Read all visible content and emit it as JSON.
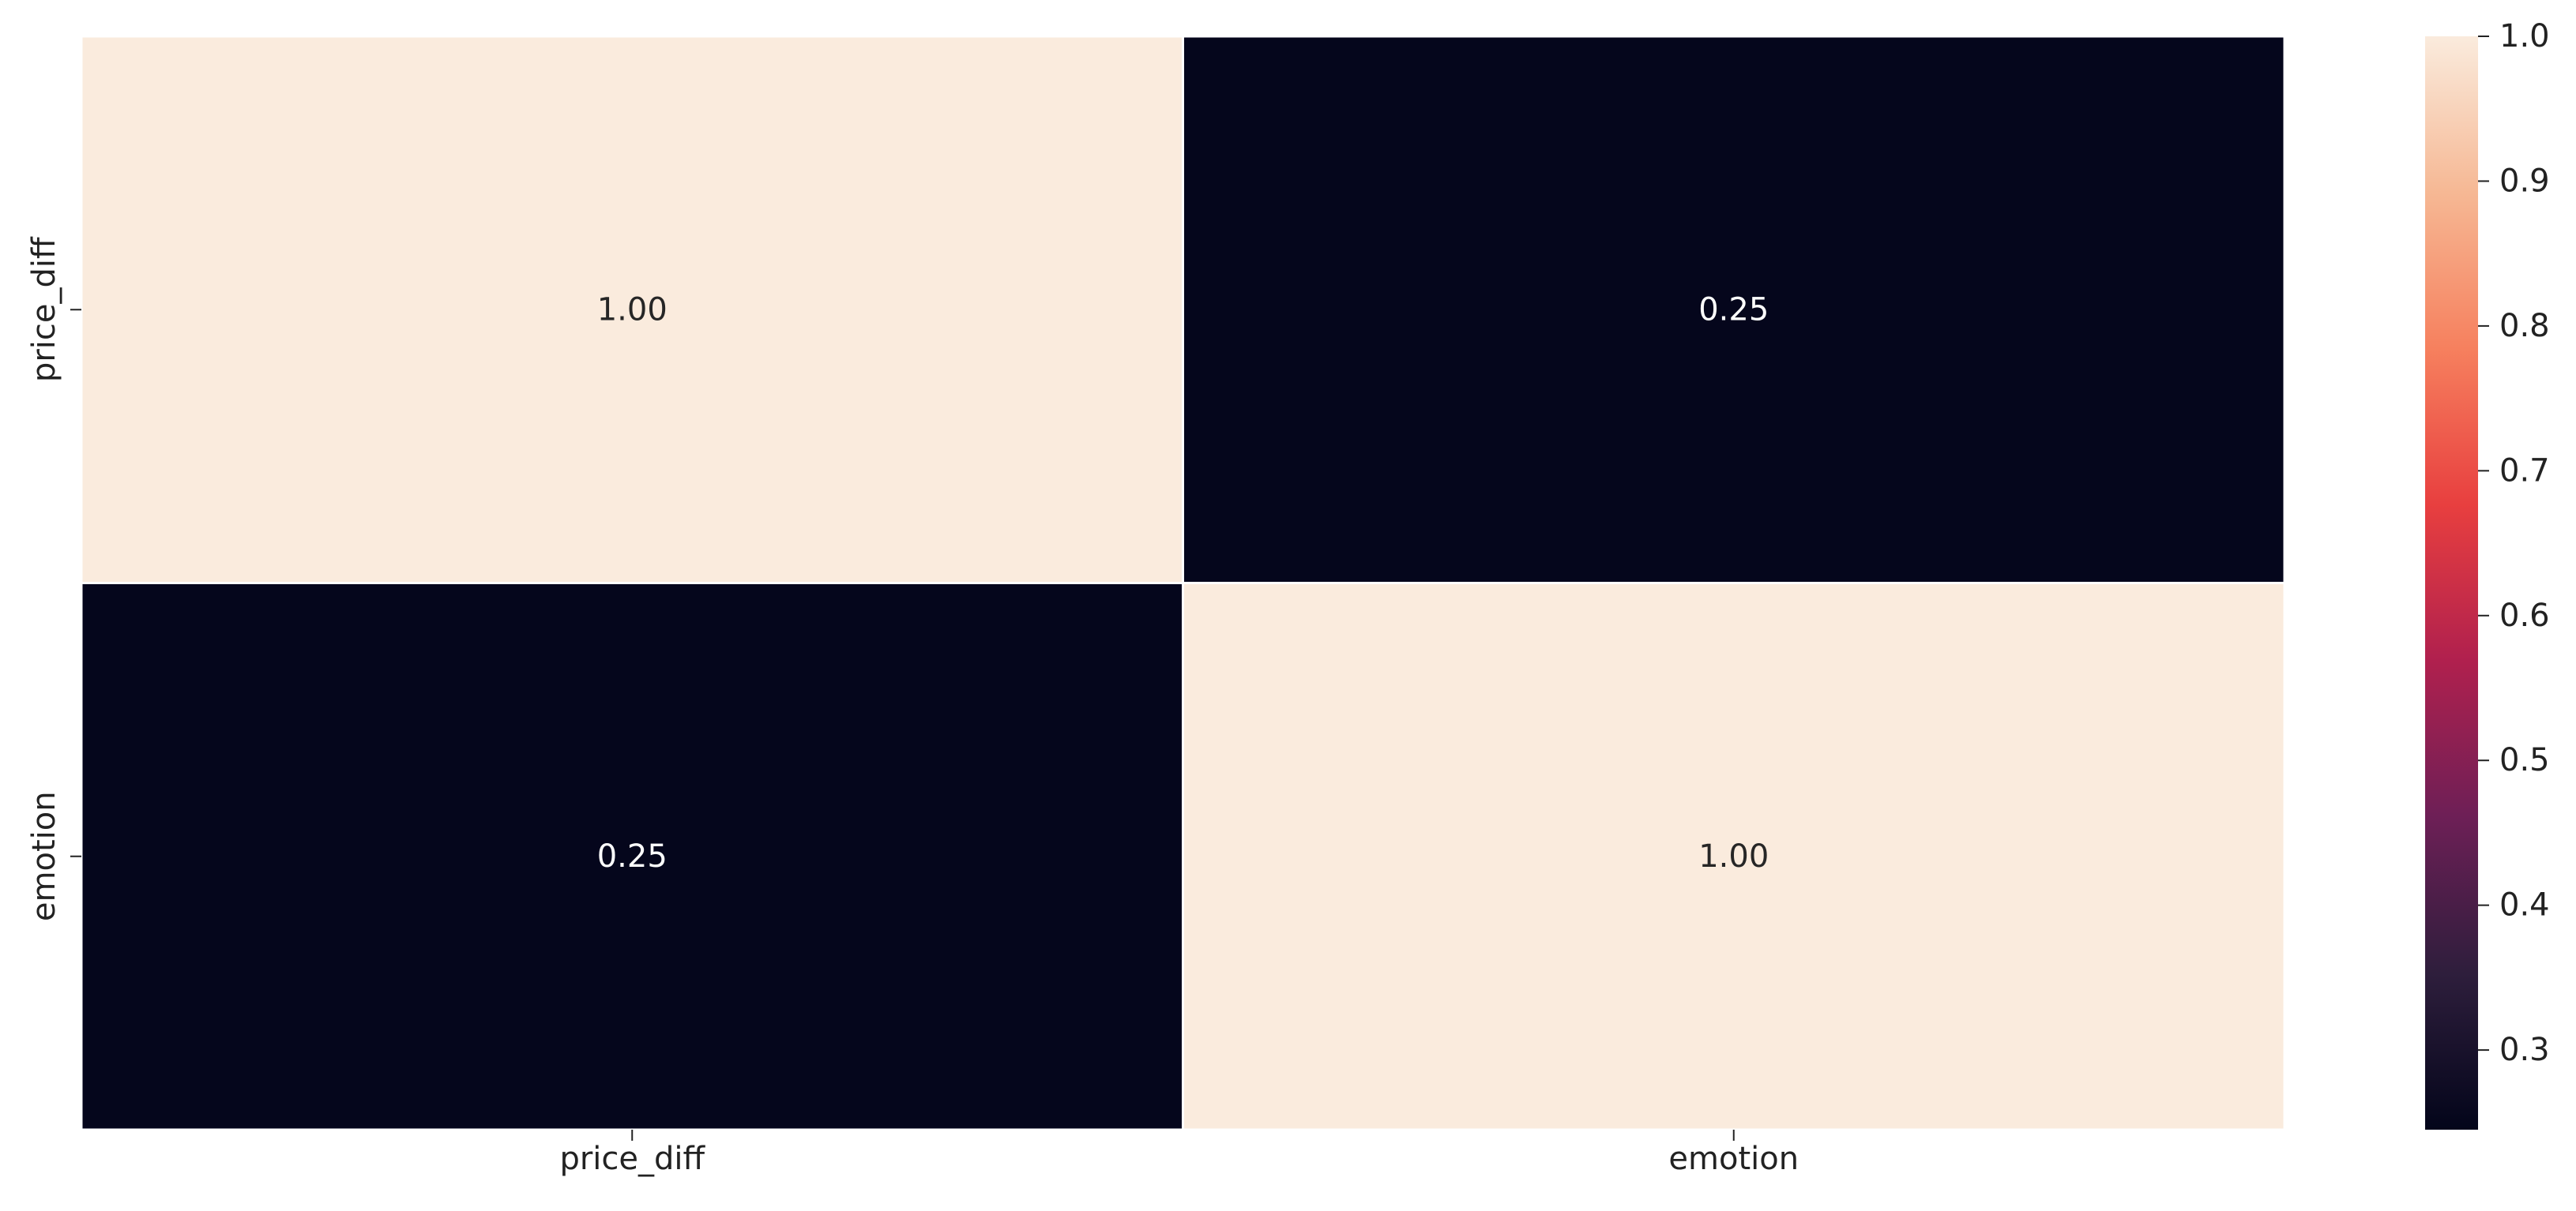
{
  "chart_data": {
    "type": "heatmap",
    "title": "",
    "xlabel": "",
    "ylabel": "",
    "x_categories": [
      "price_diff",
      "emotion"
    ],
    "y_categories": [
      "price_diff",
      "emotion"
    ],
    "values": [
      [
        1.0,
        0.25
      ],
      [
        0.25,
        1.0
      ]
    ],
    "cell_labels": [
      [
        "1.00",
        "0.25"
      ],
      [
        "0.25",
        "1.00"
      ]
    ],
    "annotation_colors": [
      [
        "#262626",
        "#ffffff"
      ],
      [
        "#ffffff",
        "#262626"
      ]
    ],
    "colorbar": {
      "range": [
        0.245,
        1.0
      ],
      "ticks": [
        0.3,
        0.4,
        0.5,
        0.6,
        0.7,
        0.8,
        0.9,
        1.0
      ],
      "tick_labels": [
        "0.3",
        "0.4",
        "0.5",
        "0.6",
        "0.7",
        "0.8",
        "0.9",
        "1.0"
      ],
      "colormap": "rocket",
      "colormap_stops": [
        "#03051a",
        "#2e1e3c",
        "#6d1f56",
        "#b0204e",
        "#e83f3f",
        "#f6805e",
        "#f6b894",
        "#faebdd"
      ]
    }
  }
}
